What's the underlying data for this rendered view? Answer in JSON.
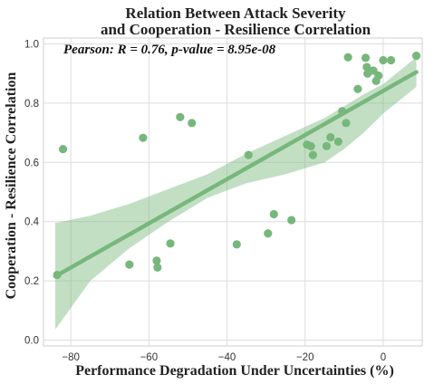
{
  "chart_data": {
    "type": "scatter",
    "title_lines": [
      "Relation Between Attack Severity",
      "and Cooperation - Resilience Correlation"
    ],
    "xlabel": "Performance Degradation Under Uncertainties (%)",
    "ylabel": "Cooperation - Resilience Correlation",
    "annotation": "Pearson:  R = 0.76, p-value = 8.95e-08",
    "xlim": [
      -87,
      10
    ],
    "ylim": [
      -0.02,
      1.02
    ],
    "xticks": [
      -80,
      -60,
      -40,
      -20,
      0
    ],
    "yticks": [
      0.0,
      0.2,
      0.4,
      0.6,
      0.8,
      1.0
    ],
    "grid": true,
    "color": "#77b77c",
    "points": [
      {
        "x": -83.5,
        "y": 0.22
      },
      {
        "x": -82.0,
        "y": 0.645
      },
      {
        "x": -65.0,
        "y": 0.255
      },
      {
        "x": -61.5,
        "y": 0.683
      },
      {
        "x": -58.0,
        "y": 0.268
      },
      {
        "x": -57.8,
        "y": 0.245
      },
      {
        "x": -54.5,
        "y": 0.326
      },
      {
        "x": -52.0,
        "y": 0.753
      },
      {
        "x": -49.0,
        "y": 0.733
      },
      {
        "x": -37.5,
        "y": 0.323
      },
      {
        "x": -34.5,
        "y": 0.625
      },
      {
        "x": -29.5,
        "y": 0.36
      },
      {
        "x": -28.0,
        "y": 0.425
      },
      {
        "x": -23.5,
        "y": 0.405
      },
      {
        "x": -19.5,
        "y": 0.66
      },
      {
        "x": -18.5,
        "y": 0.655
      },
      {
        "x": -18.0,
        "y": 0.625
      },
      {
        "x": -14.5,
        "y": 0.655
      },
      {
        "x": -13.5,
        "y": 0.685
      },
      {
        "x": -11.5,
        "y": 0.67
      },
      {
        "x": -10.5,
        "y": 0.773
      },
      {
        "x": -9.5,
        "y": 0.733
      },
      {
        "x": -9.0,
        "y": 0.955
      },
      {
        "x": -6.5,
        "y": 0.848
      },
      {
        "x": -4.5,
        "y": 0.953
      },
      {
        "x": -4.2,
        "y": 0.922
      },
      {
        "x": -4.0,
        "y": 0.9
      },
      {
        "x": -2.5,
        "y": 0.91
      },
      {
        "x": -1.8,
        "y": 0.875
      },
      {
        "x": -1.2,
        "y": 0.893
      },
      {
        "x": 0.0,
        "y": 0.945
      },
      {
        "x": 2.0,
        "y": 0.945
      },
      {
        "x": 8.5,
        "y": 0.96
      }
    ],
    "regression": {
      "x": [
        -84,
        8.5
      ],
      "y": [
        0.215,
        0.905
      ]
    },
    "confidence_band": {
      "x": [
        -84,
        -75,
        -65,
        -55,
        -45,
        -35,
        -25,
        -15,
        -10,
        -5,
        0,
        8.5
      ],
      "lower": [
        0.035,
        0.2,
        0.31,
        0.4,
        0.48,
        0.53,
        0.56,
        0.6,
        0.645,
        0.7,
        0.765,
        0.855
      ],
      "upper": [
        0.395,
        0.42,
        0.46,
        0.51,
        0.56,
        0.63,
        0.69,
        0.75,
        0.79,
        0.83,
        0.865,
        0.955
      ]
    }
  }
}
